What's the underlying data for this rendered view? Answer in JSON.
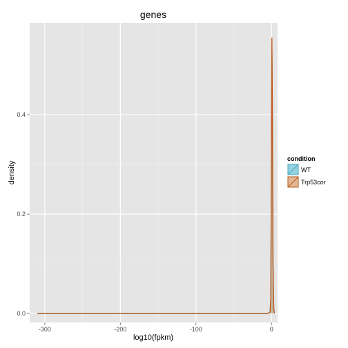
{
  "chart_data": {
    "type": "area",
    "title": "genes",
    "xlabel": "log10(fpkm)",
    "ylabel": "density",
    "xlim": [
      -320,
      8
    ],
    "ylim": [
      -0.018,
      0.585
    ],
    "x_ticks": [
      -300,
      -200,
      -100,
      0
    ],
    "x_tick_labels": [
      "-300",
      "-200",
      "-100",
      "0"
    ],
    "y_ticks": [
      0.0,
      0.2,
      0.4
    ],
    "y_tick_labels": [
      "0.0",
      "0.2",
      "0.4"
    ],
    "grid": true,
    "legend": {
      "title": "condition",
      "position": "right"
    },
    "series": [
      {
        "name": "WT",
        "fill": "#6cc4d8",
        "stroke": "#4aa8c0",
        "fill_opacity": 0.55,
        "points": [
          [
            -310,
            0
          ],
          [
            -5,
            0
          ],
          [
            -2,
            0.002
          ],
          [
            -1,
            0.03
          ],
          [
            0,
            0.35
          ],
          [
            0.5,
            0.545
          ],
          [
            1,
            0.45
          ],
          [
            2,
            0.1
          ],
          [
            3,
            0.01
          ],
          [
            4,
            0
          ]
        ]
      },
      {
        "name": "Trp53cor",
        "fill": "#d9a070",
        "stroke": "#c05818",
        "fill_opacity": 0.55,
        "points": [
          [
            -310,
            0
          ],
          [
            -5,
            0
          ],
          [
            -2,
            0.003
          ],
          [
            -1,
            0.03
          ],
          [
            0,
            0.36
          ],
          [
            0.5,
            0.555
          ],
          [
            1,
            0.46
          ],
          [
            2,
            0.1
          ],
          [
            3,
            0.01
          ],
          [
            4,
            0
          ]
        ]
      }
    ]
  }
}
